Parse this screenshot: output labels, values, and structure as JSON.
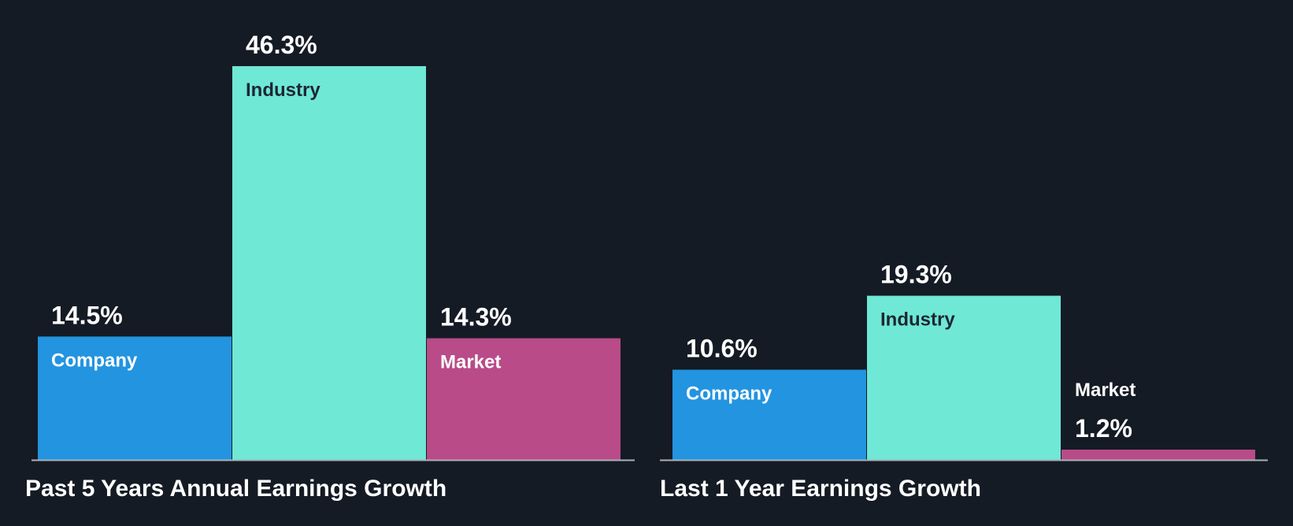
{
  "colors": {
    "background": "#151b24",
    "company": "#2394e0",
    "industry": "#6fe8d6",
    "market": "#b84b88",
    "baseline": "#aab0b8",
    "value_text": "#ffffff",
    "label_on_light": "#1c2733",
    "label_on_dark": "#ffffff"
  },
  "chart_data": [
    {
      "type": "bar",
      "title": "Past 5 Years Annual Earnings Growth",
      "categories": [
        "Company",
        "Industry",
        "Market"
      ],
      "values": [
        14.5,
        46.3,
        14.3
      ],
      "value_labels": [
        "14.5%",
        "46.3%",
        "14.3%"
      ],
      "ylim": [
        0,
        46.3
      ],
      "grid": false,
      "legend": "none"
    },
    {
      "type": "bar",
      "title": "Last 1 Year Earnings Growth",
      "categories": [
        "Company",
        "Industry",
        "Market"
      ],
      "values": [
        10.6,
        19.3,
        1.2
      ],
      "value_labels": [
        "10.6%",
        "19.3%",
        "1.2%"
      ],
      "ylim": [
        0,
        46.3
      ],
      "grid": false,
      "legend": "none"
    }
  ]
}
